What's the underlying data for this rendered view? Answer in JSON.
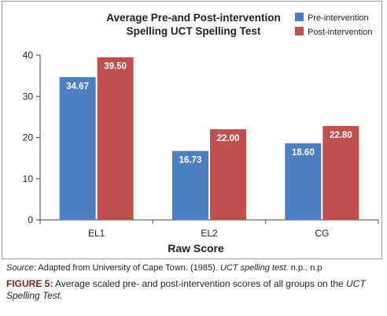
{
  "chart_data": {
    "type": "bar",
    "title_lines": [
      "Average Pre-and Post-intervention",
      "Spelling UCT Spelling Test"
    ],
    "xlabel": "Raw Score",
    "ylabel": "",
    "categories": [
      "EL1",
      "EL2",
      "CG"
    ],
    "series": [
      {
        "name": "Pre-intervention",
        "color": "#4e7fc3",
        "values": [
          34.67,
          16.73,
          18.6
        ],
        "labels": [
          "34.67",
          "16.73",
          "18.60"
        ]
      },
      {
        "name": "Post-intervention",
        "color": "#c0504d",
        "values": [
          39.5,
          22.0,
          22.8
        ],
        "labels": [
          "39.50",
          "22.00",
          "22.80"
        ]
      }
    ],
    "ylim": [
      0,
      40
    ],
    "yticks": [
      0,
      10,
      20,
      30,
      40
    ],
    "grid": false,
    "legend_position": "top-right"
  },
  "source": {
    "label": "Source",
    "text_before": ": Adapted from University of Cape Town. (1985). ",
    "italic_title": "UCT spelling test",
    "text_after": ". n.p., n.p"
  },
  "caption": {
    "label": "FIGURE 5:",
    "text": " Average scaled pre- and post-intervention scores of all groups on the ",
    "italic": "UCT Spelling Test",
    "end": "."
  }
}
